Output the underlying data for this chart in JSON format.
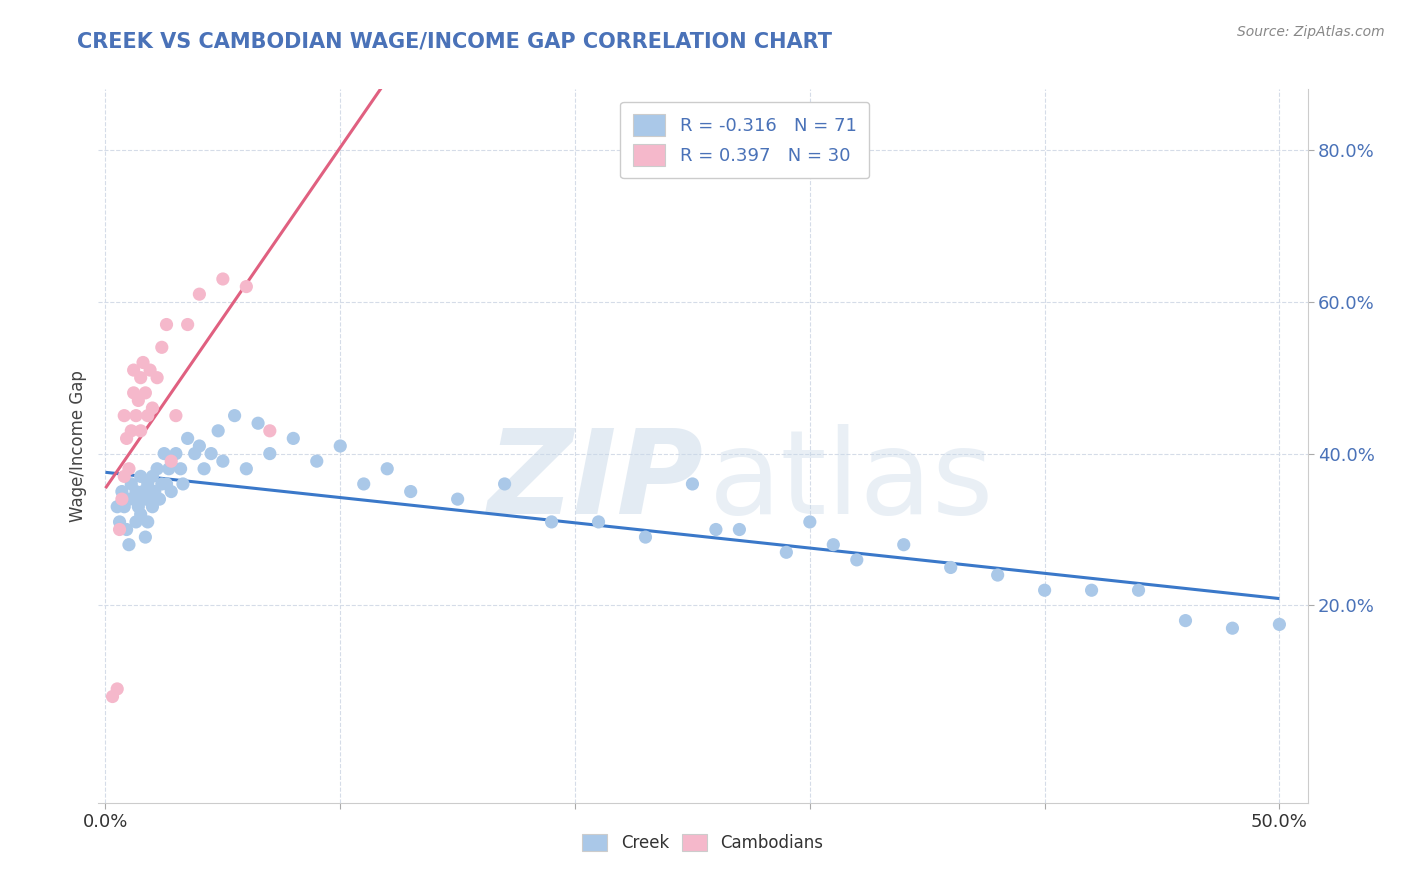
{
  "title": "CREEK VS CAMBODIAN WAGE/INCOME GAP CORRELATION CHART",
  "source_text": "Source: ZipAtlas.com",
  "ylabel": "Wage/Income Gap",
  "watermark_left": "ZIP",
  "watermark_right": "atlas",
  "xlim": [
    -0.003,
    0.512
  ],
  "ylim": [
    -0.06,
    0.88
  ],
  "xtick_positions": [
    0.0,
    0.1,
    0.2,
    0.3,
    0.4,
    0.5
  ],
  "xtick_labels": [
    "0.0%",
    "",
    "",
    "",
    "",
    "50.0%"
  ],
  "ytick_values": [
    0.2,
    0.4,
    0.6,
    0.8
  ],
  "ytick_labels": [
    "20.0%",
    "40.0%",
    "60.0%",
    "80.0%"
  ],
  "creek_R": -0.316,
  "creek_N": 71,
  "cambodian_R": 0.397,
  "cambodian_N": 30,
  "creek_dot_color": "#aac8e8",
  "cambodian_dot_color": "#f5b8cb",
  "creek_line_color": "#3a78c9",
  "cambodian_line_color": "#e06080",
  "title_color": "#4a72b8",
  "value_color": "#4a72b8",
  "grid_color": "#d5dce8",
  "legend_edge_color": "#cccccc",
  "creek_x": [
    0.005,
    0.006,
    0.007,
    0.008,
    0.009,
    0.01,
    0.01,
    0.011,
    0.012,
    0.013,
    0.013,
    0.014,
    0.015,
    0.015,
    0.016,
    0.017,
    0.017,
    0.018,
    0.018,
    0.019,
    0.02,
    0.02,
    0.021,
    0.022,
    0.023,
    0.024,
    0.025,
    0.026,
    0.027,
    0.028,
    0.03,
    0.032,
    0.033,
    0.035,
    0.038,
    0.04,
    0.042,
    0.045,
    0.048,
    0.05,
    0.055,
    0.06,
    0.065,
    0.07,
    0.08,
    0.09,
    0.1,
    0.11,
    0.12,
    0.13,
    0.15,
    0.17,
    0.19,
    0.21,
    0.23,
    0.25,
    0.26,
    0.27,
    0.29,
    0.3,
    0.31,
    0.32,
    0.34,
    0.36,
    0.38,
    0.4,
    0.42,
    0.44,
    0.46,
    0.48,
    0.5
  ],
  "creek_y": [
    0.33,
    0.31,
    0.35,
    0.33,
    0.3,
    0.34,
    0.28,
    0.36,
    0.34,
    0.31,
    0.35,
    0.33,
    0.37,
    0.32,
    0.35,
    0.34,
    0.29,
    0.36,
    0.31,
    0.34,
    0.37,
    0.33,
    0.35,
    0.38,
    0.34,
    0.36,
    0.4,
    0.36,
    0.38,
    0.35,
    0.4,
    0.38,
    0.36,
    0.42,
    0.4,
    0.41,
    0.38,
    0.4,
    0.43,
    0.39,
    0.45,
    0.38,
    0.44,
    0.4,
    0.42,
    0.39,
    0.41,
    0.36,
    0.38,
    0.35,
    0.34,
    0.36,
    0.31,
    0.31,
    0.29,
    0.36,
    0.3,
    0.3,
    0.27,
    0.31,
    0.28,
    0.26,
    0.28,
    0.25,
    0.24,
    0.22,
    0.22,
    0.22,
    0.18,
    0.17,
    0.175
  ],
  "cambodian_x": [
    0.003,
    0.005,
    0.006,
    0.007,
    0.008,
    0.008,
    0.009,
    0.01,
    0.011,
    0.012,
    0.012,
    0.013,
    0.014,
    0.015,
    0.015,
    0.016,
    0.017,
    0.018,
    0.019,
    0.02,
    0.022,
    0.024,
    0.026,
    0.028,
    0.03,
    0.035,
    0.04,
    0.05,
    0.06,
    0.07
  ],
  "cambodian_y": [
    0.08,
    0.09,
    0.3,
    0.34,
    0.37,
    0.45,
    0.42,
    0.38,
    0.43,
    0.48,
    0.51,
    0.45,
    0.47,
    0.5,
    0.43,
    0.52,
    0.48,
    0.45,
    0.51,
    0.46,
    0.5,
    0.54,
    0.57,
    0.39,
    0.45,
    0.57,
    0.61,
    0.63,
    0.62,
    0.43
  ],
  "creek_line_x0": 0.0,
  "creek_line_x1": 0.5,
  "cambodian_line_x0": 0.0,
  "cambodian_line_x1": 0.18
}
